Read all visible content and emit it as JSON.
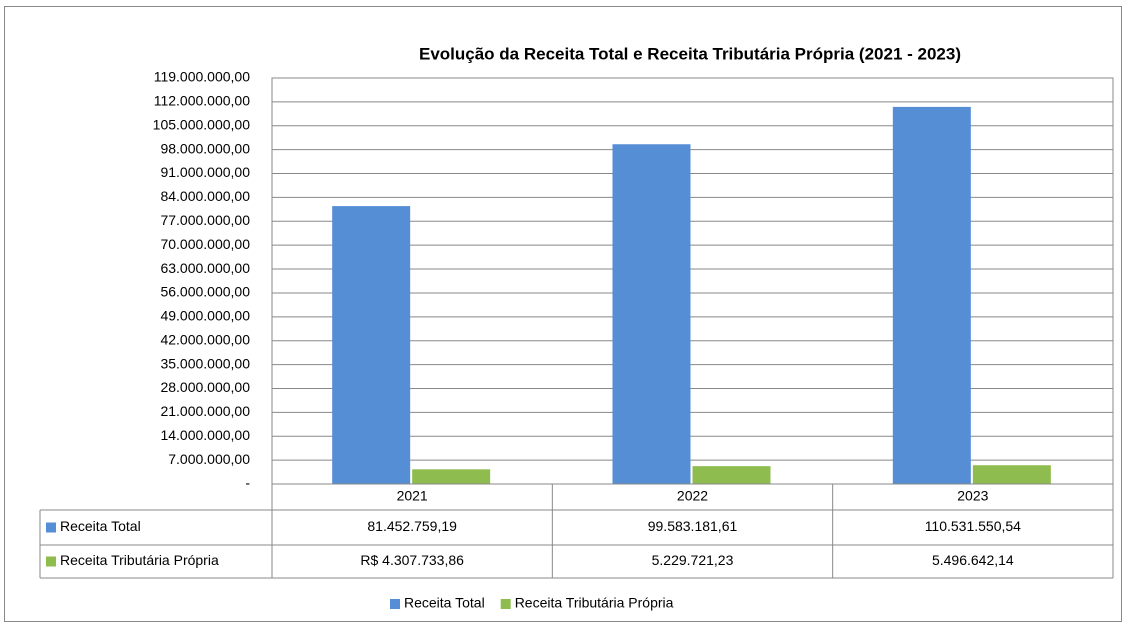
{
  "chart_data": {
    "type": "bar",
    "title": "Evolução da Receita Total e Receita Tributária Própria (2021 - 2023)",
    "categories": [
      "2021",
      "2022",
      "2023"
    ],
    "series": [
      {
        "name": "Receita Total",
        "color": "#558ed5",
        "values": [
          81452759.19,
          99583181.61,
          110531550.54
        ],
        "value_labels": [
          "81.452.759,19",
          "99.583.181,61",
          "110.531.550,54"
        ]
      },
      {
        "name": "Receita Tributária Própria",
        "color": "#8fbc4e",
        "values": [
          4307733.86,
          5229721.23,
          5496642.14
        ],
        "value_labels": [
          "R$ 4.307.733,86",
          "5.229.721,23",
          "5.496.642,14"
        ]
      }
    ],
    "ylim": [
      0,
      119000000
    ],
    "yticks": [
      {
        "value": 0,
        "label": "-"
      },
      {
        "value": 7000000,
        "label": "7.000.000,00"
      },
      {
        "value": 14000000,
        "label": "14.000.000,00"
      },
      {
        "value": 21000000,
        "label": "21.000.000,00"
      },
      {
        "value": 28000000,
        "label": "28.000.000,00"
      },
      {
        "value": 35000000,
        "label": "35.000.000,00"
      },
      {
        "value": 42000000,
        "label": "42.000.000,00"
      },
      {
        "value": 49000000,
        "label": "49.000.000,00"
      },
      {
        "value": 56000000,
        "label": "56.000.000,00"
      },
      {
        "value": 63000000,
        "label": "63.000.000,00"
      },
      {
        "value": 70000000,
        "label": "70.000.000,00"
      },
      {
        "value": 77000000,
        "label": "77.000.000,00"
      },
      {
        "value": 84000000,
        "label": "84.000.000,00"
      },
      {
        "value": 91000000,
        "label": "91.000.000,00"
      },
      {
        "value": 98000000,
        "label": "98.000.000,00"
      },
      {
        "value": 105000000,
        "label": "105.000.000,00"
      },
      {
        "value": 112000000,
        "label": "112.000.000,00"
      },
      {
        "value": 119000000,
        "label": "119.000.000,00"
      }
    ],
    "grid": true
  }
}
